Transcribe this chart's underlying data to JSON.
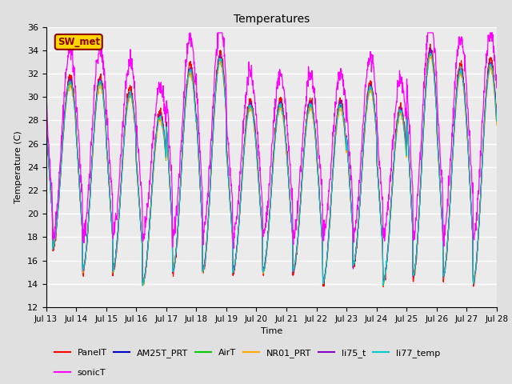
{
  "title": "Temperatures",
  "xlabel": "Time",
  "ylabel": "Temperature (C)",
  "ylim": [
    12,
    36
  ],
  "yticks": [
    12,
    14,
    16,
    18,
    20,
    22,
    24,
    26,
    28,
    30,
    32,
    34,
    36
  ],
  "xtick_labels": [
    "Jul 13",
    "Jul 14",
    "Jul 15",
    "Jul 16",
    "Jul 17",
    "Jul 18",
    "Jul 19",
    "Jul 20",
    "Jul 21",
    "Jul 22",
    "Jul 23",
    "Jul 24",
    "Jul 25",
    "Jul 26",
    "Jul 27",
    "Jul 28"
  ],
  "series_order": [
    "PanelT",
    "AM25T_PRT",
    "AirT",
    "NR01_PRT",
    "li75_t",
    "li77_temp",
    "sonicT"
  ],
  "series": {
    "PanelT": {
      "color": "#ff0000",
      "lw": 0.8
    },
    "AM25T_PRT": {
      "color": "#0000cc",
      "lw": 0.8
    },
    "AirT": {
      "color": "#00cc00",
      "lw": 0.8
    },
    "NR01_PRT": {
      "color": "#ffaa00",
      "lw": 0.8
    },
    "li75_t": {
      "color": "#8800cc",
      "lw": 0.8
    },
    "li77_temp": {
      "color": "#00cccc",
      "lw": 0.8
    },
    "sonicT": {
      "color": "#ff00ff",
      "lw": 0.9
    }
  },
  "legend_row1": [
    "PanelT",
    "AM25T_PRT",
    "AirT",
    "NR01_PRT",
    "li75_t",
    "li77_temp"
  ],
  "legend_row2": [
    "sonicT"
  ],
  "annotation_text": "SW_met",
  "annotation_color": "#8B0000",
  "annotation_bg": "#FFD700",
  "bg_color": "#e0e0e0",
  "plot_bg_color": "#ebebeb",
  "grid_color": "#ffffff",
  "n_days": 15,
  "spd": 96,
  "base_min": 14.2,
  "base_max": 31.5,
  "sonic_night_min": 18.0,
  "sonic_peak_extra": 2.5,
  "day_variation_peaks": [
    31.5,
    31.5,
    30.5,
    28.5,
    32.5,
    33.5,
    29.5,
    29.5,
    29.5,
    29.5,
    31.0,
    29.0,
    34.0,
    32.5,
    33.0
  ],
  "day_variation_mins": [
    17.0,
    15.0,
    15.0,
    14.0,
    15.0,
    15.0,
    15.0,
    15.0,
    15.0,
    14.0,
    15.5,
    14.0,
    14.5,
    14.5,
    14.0
  ]
}
